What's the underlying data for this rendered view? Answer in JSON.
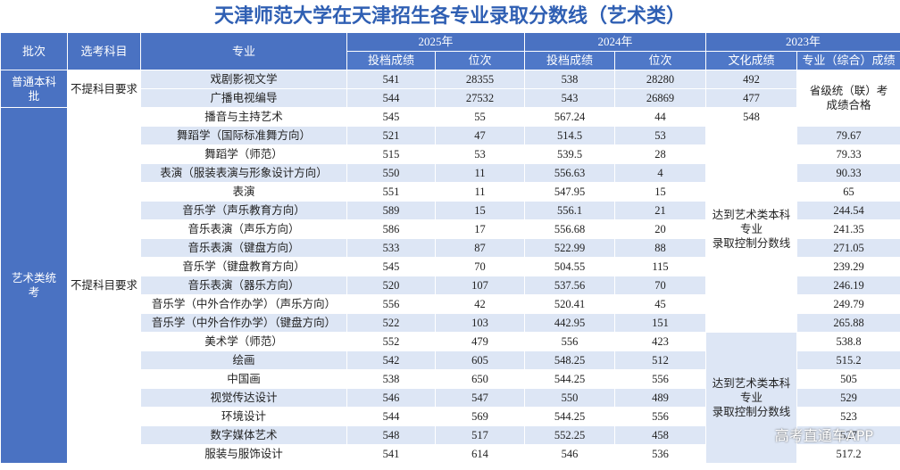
{
  "title": "天津师范大学在天津招生各专业录取分数线（艺术类）",
  "header": {
    "row1": [
      "批次",
      "选考科目",
      "专业",
      "2025年",
      "2024年",
      "2023年"
    ],
    "row2": [
      "投档成绩",
      "位次",
      "投档成绩",
      "位次",
      "文化成绩",
      "专业（综合）成绩"
    ]
  },
  "table": {
    "rows": [
      [
        "普通本科\n批",
        "不提科目要求",
        "戏剧影视文学",
        541,
        28355,
        538,
        28280,
        492,
        "省级统（联）考\n成绩合格"
      ],
      [
        "广播电视编导",
        544,
        27532,
        543,
        26869,
        477
      ],
      [
        "艺术类统\n考",
        "不提科目要求",
        "播音与主持艺术",
        545,
        55,
        567.24,
        44,
        548
      ],
      [
        "舞蹈学（国际标准舞方向）",
        521,
        47,
        514.5,
        53,
        "达到艺术类本科\n专业\n录取控制分数线",
        79.67
      ],
      [
        "舞蹈学（师范）",
        515,
        53,
        539.5,
        28,
        79.33
      ],
      [
        "表演（服装表演与形象设计方向）",
        550,
        11,
        556.63,
        4,
        90.33
      ],
      [
        "表演",
        551,
        11,
        547.95,
        15,
        65
      ],
      [
        "音乐学（声乐教育方向）",
        589,
        15,
        556.1,
        21,
        244.54
      ],
      [
        "音乐表演（声乐方向）",
        586,
        17,
        556.68,
        20,
        241.35
      ],
      [
        "音乐表演（键盘方向）",
        533,
        87,
        522.99,
        88,
        271.05
      ],
      [
        "音乐学（键盘教育方向）",
        545,
        70,
        504.55,
        115,
        239.29
      ],
      [
        "音乐表演（器乐方向）",
        520,
        107,
        537.56,
        70,
        246.19
      ],
      [
        "音乐学（中外合作办学）（声乐方向）",
        556,
        42,
        520.41,
        45,
        249.79
      ],
      [
        "音乐学（中外合作办学）（键盘方向）",
        522,
        103,
        442.95,
        151,
        265.88
      ],
      [
        "美术学（师范）",
        552,
        479,
        556,
        423,
        "达到艺术类本科\n专业\n录取控制分数线",
        538.8
      ],
      [
        "绘画",
        542,
        605,
        548.25,
        512,
        515.2
      ],
      [
        "中国画",
        538,
        650,
        544.25,
        556,
        505
      ],
      [
        "视觉传达设计",
        546,
        547,
        550,
        489,
        529
      ],
      [
        "环境设计",
        544,
        569,
        544.25,
        556,
        523
      ],
      [
        "数字媒体艺术",
        548,
        517,
        552.25,
        458,
        527
      ],
      [
        "服装与服饰设计",
        541,
        614,
        546,
        536,
        517.2
      ]
    ]
  },
  "watermark": "高考直通车APP"
}
